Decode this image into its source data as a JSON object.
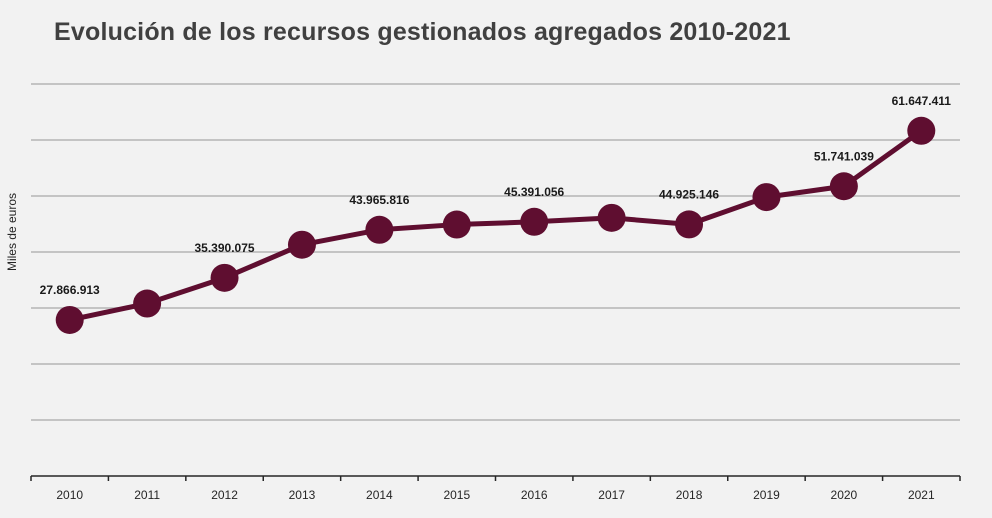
{
  "chart_data": {
    "type": "line",
    "title": "Evolución de los recursos gestionados agregados 2010-2021",
    "xlabel": "",
    "ylabel": "Miles de euros",
    "ylim": [
      0,
      70000000
    ],
    "grid": true,
    "x": [
      "2010",
      "2011",
      "2012",
      "2013",
      "2014",
      "2015",
      "2016",
      "2017",
      "2018",
      "2019",
      "2020",
      "2021"
    ],
    "series": [
      {
        "name": "Recursos gestionados agregados",
        "values": [
          27866913,
          30800000,
          35390075,
          41300000,
          43965816,
          44900000,
          45391056,
          46100000,
          44925146,
          49800000,
          51741039,
          61647411
        ]
      }
    ],
    "data_labels": [
      {
        "index": 0,
        "text": "27.866.913"
      },
      {
        "index": 2,
        "text": "35.390.075"
      },
      {
        "index": 4,
        "text": "43.965.816"
      },
      {
        "index": 6,
        "text": "45.391.056"
      },
      {
        "index": 8,
        "text": "44.925.146"
      },
      {
        "index": 10,
        "text": "51.741.039"
      },
      {
        "index": 11,
        "text": "61.647.411"
      }
    ],
    "colors": {
      "line": "#5f0e30",
      "marker": "#5f0e30",
      "grid": "#c4c4c4",
      "axis": "#262626"
    }
  }
}
